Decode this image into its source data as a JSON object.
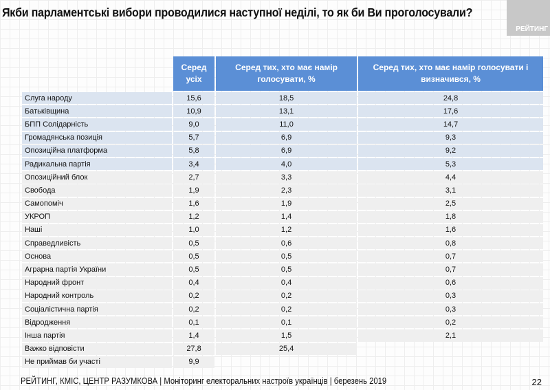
{
  "title": "Якби парламентські вибори проводилися наступної неділі, то як би Ви проголосували?",
  "logo_text": "РЕЙТИНГ",
  "table": {
    "headers": [
      "Серед усіх",
      "Серед тих, хто має намір голосувати, %",
      "Серед тих, хто має намір голосувати і визначився, %"
    ],
    "rows": [
      {
        "label": "Слуга народу",
        "values": [
          "15,6",
          "18,5",
          "24,8"
        ]
      },
      {
        "label": "Батьківщина",
        "values": [
          "10,9",
          "13,1",
          "17,6"
        ]
      },
      {
        "label": "БПП Солідарність",
        "values": [
          "9,0",
          "11,0",
          "14,7"
        ]
      },
      {
        "label": "Громадянська позиція",
        "values": [
          "5,7",
          "6,9",
          "9,3"
        ]
      },
      {
        "label": "Опозиційна платформа",
        "values": [
          "5,8",
          "6,9",
          "9,2"
        ]
      },
      {
        "label": "Радикальна партія",
        "values": [
          "3,4",
          "4,0",
          "5,3"
        ]
      },
      {
        "label": "Опозиційний блок",
        "values": [
          "2,7",
          "3,3",
          "4,4"
        ]
      },
      {
        "label": "Свобода",
        "values": [
          "1,9",
          "2,3",
          "3,1"
        ]
      },
      {
        "label": "Самопоміч",
        "values": [
          "1,6",
          "1,9",
          "2,5"
        ]
      },
      {
        "label": "УКРОП",
        "values": [
          "1,2",
          "1,4",
          "1,8"
        ]
      },
      {
        "label": "Наші",
        "values": [
          "1,0",
          "1,2",
          "1,6"
        ]
      },
      {
        "label": "Справедливість",
        "values": [
          "0,5",
          "0,6",
          "0,8"
        ]
      },
      {
        "label": "Основа",
        "values": [
          "0,5",
          "0,5",
          "0,7"
        ]
      },
      {
        "label": "Аграрна партія України",
        "values": [
          "0,5",
          "0,5",
          "0,7"
        ]
      },
      {
        "label": "Народний фронт",
        "values": [
          "0,4",
          "0,4",
          "0,6"
        ]
      },
      {
        "label": "Народний контроль",
        "values": [
          "0,2",
          "0,2",
          "0,3"
        ]
      },
      {
        "label": "Соціалістична партія",
        "values": [
          "0,2",
          "0,2",
          "0,3"
        ]
      },
      {
        "label": "Відродження",
        "values": [
          "0,1",
          "0,1",
          "0,2"
        ]
      },
      {
        "label": "Інша партія",
        "values": [
          "1,4",
          "1,5",
          "2,1"
        ]
      },
      {
        "label": "Важко відповісти",
        "values": [
          "27,8",
          "25,4"
        ]
      },
      {
        "label": "Не приймав би участі",
        "values": [
          "9,9"
        ]
      }
    ]
  },
  "footer": "РЕЙТИНГ, КМІС, ЦЕНТР РАЗУМКОВА  | Моніторинг електоральних настроїв українців | березень 2019",
  "page_number": "22"
}
